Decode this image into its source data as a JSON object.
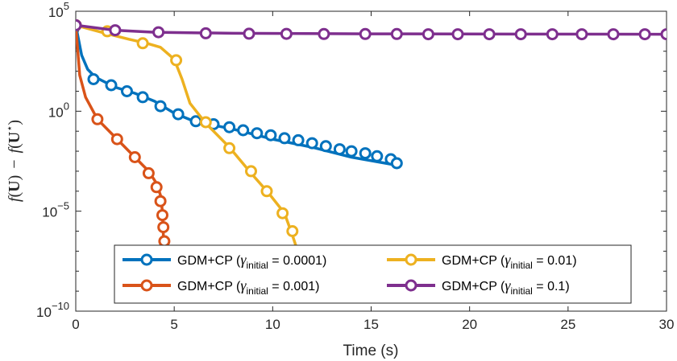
{
  "chart_data": {
    "type": "line",
    "title": "",
    "xlabel": "Time (s)",
    "ylabel": "f(U) − f(U*)",
    "ylabel_parts": {
      "f1": "f",
      "open1": "(",
      "u1": "U",
      "close1": ")",
      "minus": "−",
      "f2": "f",
      "open2": "(",
      "u2": "U",
      "star": "⋆",
      "close2": ")"
    },
    "xscale": "linear",
    "yscale": "log",
    "xlim": [
      0,
      30
    ],
    "ylim_exp": [
      -10,
      5
    ],
    "xticks": [
      "0",
      "5",
      "10",
      "15",
      "20",
      "25",
      "30"
    ],
    "yticks": [
      {
        "exp": -10,
        "base": "10",
        "sup": "−10"
      },
      {
        "exp": -5,
        "base": "10",
        "sup": "−5"
      },
      {
        "exp": 0,
        "base": "10",
        "sup": "0"
      },
      {
        "exp": 5,
        "base": "10",
        "sup": "5"
      }
    ],
    "legend_position": "bottom-center",
    "series": [
      {
        "name": "GDM+CP (γinitial = 0.0001)",
        "legend": {
          "prefix": "GDM+CP (",
          "gamma": "γ",
          "sub": "initial",
          "suffix": " = 0.0001)"
        },
        "color": "#0072BD",
        "line": [
          [
            0,
            4.3
          ],
          [
            0.3,
            2.8
          ],
          [
            0.6,
            2.1
          ],
          [
            1.0,
            1.7
          ],
          [
            2,
            1.2
          ],
          [
            3,
            0.9
          ],
          [
            4,
            0.5
          ],
          [
            5,
            -0.1
          ],
          [
            6,
            -0.5
          ],
          [
            8,
            -0.9
          ],
          [
            10,
            -1.4
          ],
          [
            12,
            -1.8
          ],
          [
            14,
            -2.3
          ],
          [
            16.3,
            -2.7
          ]
        ],
        "markers": [
          [
            0,
            4.3
          ],
          [
            0.9,
            1.6
          ],
          [
            1.8,
            1.3
          ],
          [
            2.6,
            1.0
          ],
          [
            3.4,
            0.7
          ],
          [
            4.3,
            0.25
          ],
          [
            5.2,
            -0.15
          ],
          [
            6.1,
            -0.5
          ],
          [
            7.0,
            -0.65
          ],
          [
            7.8,
            -0.8
          ],
          [
            8.5,
            -0.95
          ],
          [
            9.2,
            -1.1
          ],
          [
            9.9,
            -1.2
          ],
          [
            10.6,
            -1.35
          ],
          [
            11.3,
            -1.45
          ],
          [
            12.0,
            -1.6
          ],
          [
            12.7,
            -1.75
          ],
          [
            13.4,
            -1.9
          ],
          [
            14.0,
            -2.0
          ],
          [
            14.7,
            -2.1
          ],
          [
            15.3,
            -2.25
          ],
          [
            16.0,
            -2.4
          ],
          [
            16.3,
            -2.6
          ]
        ]
      },
      {
        "name": "GDM+CP (γinitial = 0.001)",
        "legend": {
          "prefix": "GDM+CP (",
          "gamma": "γ",
          "sub": "initial",
          "suffix": " = 0.001)"
        },
        "color": "#D95319",
        "line": [
          [
            0,
            4.3
          ],
          [
            0.2,
            1.8
          ],
          [
            0.5,
            0.7
          ],
          [
            1.1,
            -0.4
          ],
          [
            2.1,
            -1.4
          ],
          [
            3.0,
            -2.3
          ],
          [
            3.7,
            -3.0
          ],
          [
            4.1,
            -3.6
          ],
          [
            4.3,
            -4.2
          ],
          [
            4.4,
            -5.0
          ],
          [
            4.45,
            -6.2
          ],
          [
            4.5,
            -6.6
          ]
        ],
        "markers": [
          [
            0,
            4.3
          ],
          [
            1.1,
            -0.4
          ],
          [
            2.1,
            -1.4
          ],
          [
            3.0,
            -2.3
          ],
          [
            3.7,
            -3.1
          ],
          [
            4.1,
            -3.8
          ],
          [
            4.3,
            -4.5
          ],
          [
            4.4,
            -5.2
          ],
          [
            4.45,
            -5.8
          ],
          [
            4.5,
            -6.5
          ]
        ]
      },
      {
        "name": "GDM+CP (γinitial = 0.01)",
        "legend": {
          "prefix": "GDM+CP (",
          "gamma": "γ",
          "sub": "initial",
          "suffix": " = 0.01)"
        },
        "color": "#EDB120",
        "line": [
          [
            0,
            4.3
          ],
          [
            1.5,
            3.9
          ],
          [
            2.7,
            3.6
          ],
          [
            3.6,
            3.4
          ],
          [
            4.3,
            3.2
          ],
          [
            5.0,
            2.6
          ],
          [
            5.4,
            1.6
          ],
          [
            5.8,
            0.4
          ],
          [
            6.6,
            -0.6
          ],
          [
            7.8,
            -1.8
          ],
          [
            8.9,
            -3.1
          ],
          [
            9.8,
            -4.1
          ],
          [
            10.6,
            -5.1
          ],
          [
            11.0,
            -6.2
          ],
          [
            11.2,
            -6.8
          ]
        ],
        "markers": [
          [
            0,
            4.3
          ],
          [
            1.6,
            4.0
          ],
          [
            3.4,
            3.4
          ],
          [
            5.1,
            2.55
          ],
          [
            6.6,
            -0.55
          ],
          [
            7.8,
            -1.85
          ],
          [
            8.9,
            -3.0
          ],
          [
            9.7,
            -4.0
          ],
          [
            10.5,
            -5.1
          ],
          [
            11.0,
            -6.0
          ]
        ]
      },
      {
        "name": "GDM+CP (γinitial = 0.1)",
        "legend": {
          "prefix": "GDM+CP (",
          "gamma": "γ",
          "sub": "initial",
          "suffix": " = 0.1)"
        },
        "color": "#7E2F8E",
        "line": [
          [
            0,
            4.3
          ],
          [
            2,
            4.05
          ],
          [
            4,
            3.95
          ],
          [
            8,
            3.9
          ],
          [
            15,
            3.87
          ],
          [
            30,
            3.85
          ]
        ],
        "markers": [
          [
            0,
            4.3
          ],
          [
            2.0,
            4.05
          ],
          [
            4.2,
            3.95
          ],
          [
            6.6,
            3.9
          ],
          [
            8.8,
            3.88
          ],
          [
            10.7,
            3.87
          ],
          [
            12.6,
            3.86
          ],
          [
            14.7,
            3.86
          ],
          [
            16.3,
            3.86
          ],
          [
            17.9,
            3.85
          ],
          [
            19.4,
            3.85
          ],
          [
            21.0,
            3.85
          ],
          [
            22.6,
            3.85
          ],
          [
            24.2,
            3.85
          ],
          [
            25.7,
            3.85
          ],
          [
            27.3,
            3.85
          ],
          [
            28.9,
            3.85
          ],
          [
            30.0,
            3.85
          ]
        ]
      }
    ]
  }
}
